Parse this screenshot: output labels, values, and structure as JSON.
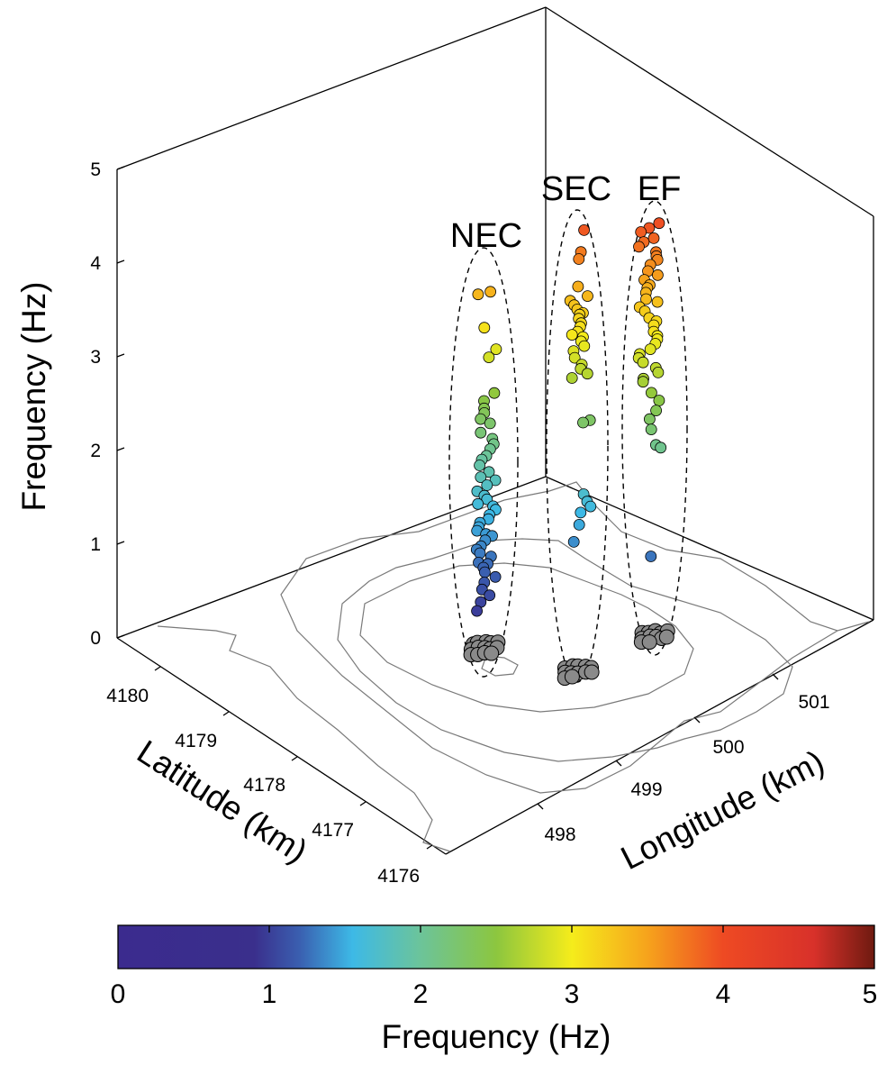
{
  "chart_data": {
    "type": "scatter3d",
    "axes": {
      "x": {
        "label": "Longitude (km)",
        "ticks": [
          498,
          499,
          500,
          501
        ]
      },
      "y": {
        "label": "Latitude (km)",
        "ticks": [
          4180,
          4179,
          4178,
          4177,
          4176
        ]
      },
      "z": {
        "label": "Frequency (Hz)",
        "ticks": [
          0,
          1,
          2,
          3,
          4,
          5
        ],
        "range": [
          0,
          5
        ]
      }
    },
    "colorbar": {
      "label": "Frequency (Hz)",
      "ticks": [
        0,
        1,
        2,
        3,
        4,
        5
      ],
      "range": [
        0,
        5
      ],
      "colormap": [
        "#3b2b8e",
        "#3a5fb0",
        "#3db9e6",
        "#6cc49a",
        "#8cc63f",
        "#f5ec1b",
        "#f6a31c",
        "#ee4a23",
        "#8b1a12"
      ]
    },
    "grid": false,
    "groups": [
      {
        "name": "NEC",
        "frequencies": [
          3.62,
          3.58,
          3.22,
          3.0,
          2.92,
          2.53,
          2.45,
          2.38,
          2.32,
          2.25,
          2.2,
          2.12,
          2.06,
          2.0,
          1.94,
          1.88,
          1.82,
          1.76,
          1.7,
          1.65,
          1.6,
          1.55,
          1.5,
          1.45,
          1.4,
          1.36,
          1.32,
          1.28,
          1.24,
          1.2,
          1.16,
          1.12,
          1.08,
          1.04,
          1.0,
          0.95,
          0.9,
          0.86,
          0.82,
          0.78,
          0.74,
          0.7,
          0.66,
          0.62,
          0.58,
          0.52,
          0.45,
          0.38,
          0.3,
          0.22
        ],
        "ground_events": 14
      },
      {
        "name": "SEC",
        "frequencies": [
          4.28,
          4.04,
          3.98,
          3.66,
          3.58,
          3.52,
          3.48,
          3.44,
          3.4,
          3.36,
          3.32,
          3.28,
          3.24,
          3.2,
          3.16,
          3.12,
          3.08,
          3.04,
          2.98,
          2.92,
          2.85,
          2.8,
          2.75,
          2.7,
          2.24,
          2.22,
          1.45,
          1.38,
          1.32,
          1.25,
          1.14,
          0.95
        ],
        "ground_events": 12
      },
      {
        "name": "EF",
        "frequencies": [
          4.34,
          4.3,
          4.25,
          4.2,
          4.15,
          4.1,
          4.05,
          4.0,
          3.95,
          3.9,
          3.85,
          3.8,
          3.75,
          3.7,
          3.65,
          3.6,
          3.55,
          3.5,
          3.45,
          3.4,
          3.35,
          3.3,
          3.25,
          3.2,
          3.15,
          3.1,
          3.05,
          3.0,
          2.95,
          2.9,
          2.85,
          2.8,
          2.75,
          2.7,
          2.65,
          2.55,
          2.45,
          2.35,
          2.25,
          2.15,
          1.98,
          1.96,
          0.78
        ],
        "ground_events": 12
      }
    ]
  }
}
